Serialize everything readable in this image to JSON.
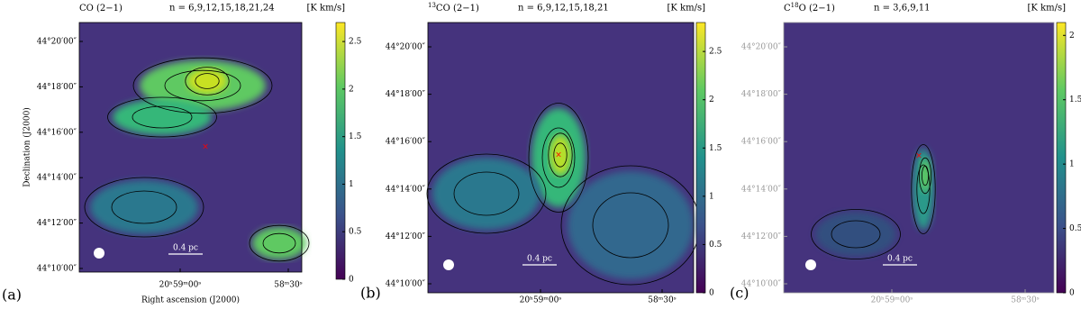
{
  "figure": {
    "panels": [
      {
        "label": "(a)",
        "title": {
          "pre": "CO (2−1)"
        },
        "levels": "n = 6,9,12,15,18,21,24",
        "unit": "[K km/s]",
        "colorbar_lim": [
          0,
          2.7
        ],
        "colorbar_ticks": [
          0,
          0.5,
          1,
          1.5,
          2,
          2.5
        ],
        "yticks": [
          "44°20′00″",
          "44°18′00″",
          "44°16′00″",
          "44°14′00″",
          "44°12′00″",
          "44°10′00″"
        ],
        "xticks": [
          "20ʰ59ᵐ00ˢ",
          "58ᵐ30ˢ"
        ],
        "scale_bar": "0.4 pc",
        "xlabel": "Right ascension (J2000)",
        "ylabel": "Declination (J2000)",
        "axis_color": "#000000"
      },
      {
        "label": "(b)",
        "title": {
          "sup": "13",
          "post": "CO (2−1)"
        },
        "levels": "n = 6,9,12,15,18,21",
        "unit": "[K km/s]",
        "colorbar_lim": [
          0,
          2.8
        ],
        "colorbar_ticks": [
          0,
          0.5,
          1,
          1.5,
          2,
          2.5
        ],
        "yticks": [
          "44°20′00″",
          "44°18′00″",
          "44°16′00″",
          "44°14′00″",
          "44°12′00″",
          "44°10′00″"
        ],
        "xticks": [
          "20ʰ59ᵐ00ˢ",
          "58ᵐ30ˢ"
        ],
        "scale_bar": "0.4 pc",
        "axis_color": "#000000"
      },
      {
        "label": "(c)",
        "title": {
          "pre": "C",
          "sup": "18",
          "post": "O (2−1)"
        },
        "levels": "n = 3,6,9,11",
        "unit": "[K km/s]",
        "colorbar_lim": [
          0,
          2.1
        ],
        "colorbar_ticks": [
          0,
          0.5,
          1,
          1.5,
          2
        ],
        "yticks": [
          "44°20′00″",
          "44°18′00″",
          "44°16′00″",
          "44°14′00″",
          "44°12′00″",
          "44°10′00″"
        ],
        "xticks": [
          "20ʰ59ᵐ00ˢ",
          "58ᵐ30ˢ"
        ],
        "scale_bar": "0.4 pc",
        "axis_color": "#999999"
      }
    ]
  }
}
